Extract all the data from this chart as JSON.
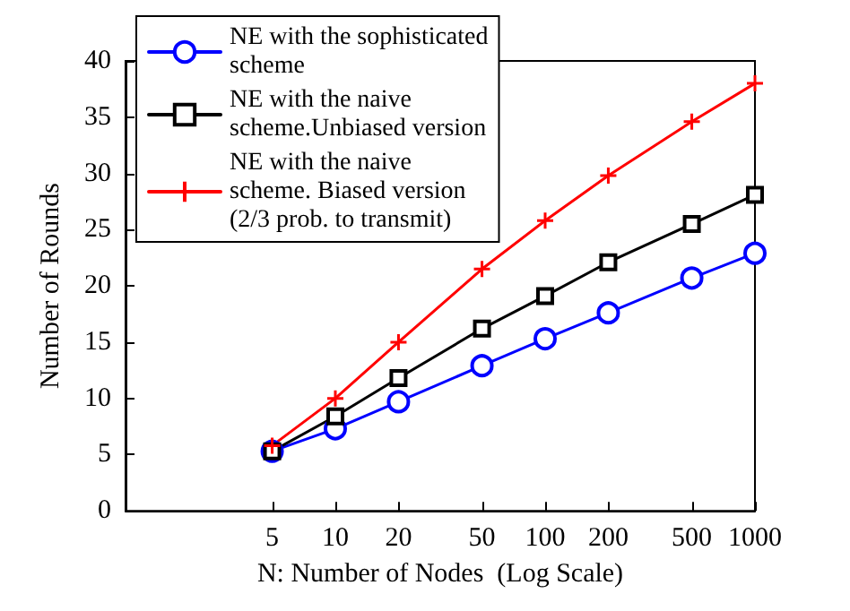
{
  "chart_data": {
    "type": "line",
    "xlabel": "N: Number of Nodes  (Log Scale)",
    "ylabel": "Number of Rounds",
    "x": [
      5,
      10,
      20,
      50,
      100,
      200,
      500,
      1000
    ],
    "log": "x",
    "xlim": [
      1,
      1000
    ],
    "xticks": [
      5,
      10,
      20,
      50,
      100,
      200,
      500,
      1000
    ],
    "ylim": [
      0,
      40
    ],
    "yticks": [
      0,
      5,
      10,
      15,
      20,
      25,
      30,
      35,
      40
    ],
    "grid": false,
    "legend": "top left",
    "line_style": "solid",
    "series": [
      {
        "name": "NE with the sophisticated\nscheme",
        "color": "#0000ff",
        "marker": "circle",
        "values": [
          5.3,
          7.3,
          9.7,
          12.9,
          15.3,
          17.6,
          20.7,
          22.9
        ]
      },
      {
        "name": "NE with the naive\nscheme.Unbiased version",
        "color": "#000000",
        "marker": "square",
        "values": [
          5.3,
          8.4,
          11.8,
          16.2,
          19.1,
          22.1,
          25.5,
          28.1
        ]
      },
      {
        "name": "NE with the naive\nscheme. Biased version\n(2/3 prob. to transmit)",
        "color": "#ff0000",
        "marker": "cross",
        "values": [
          5.8,
          10,
          15,
          21.5,
          25.8,
          29.8,
          34.6,
          38
        ]
      }
    ]
  }
}
